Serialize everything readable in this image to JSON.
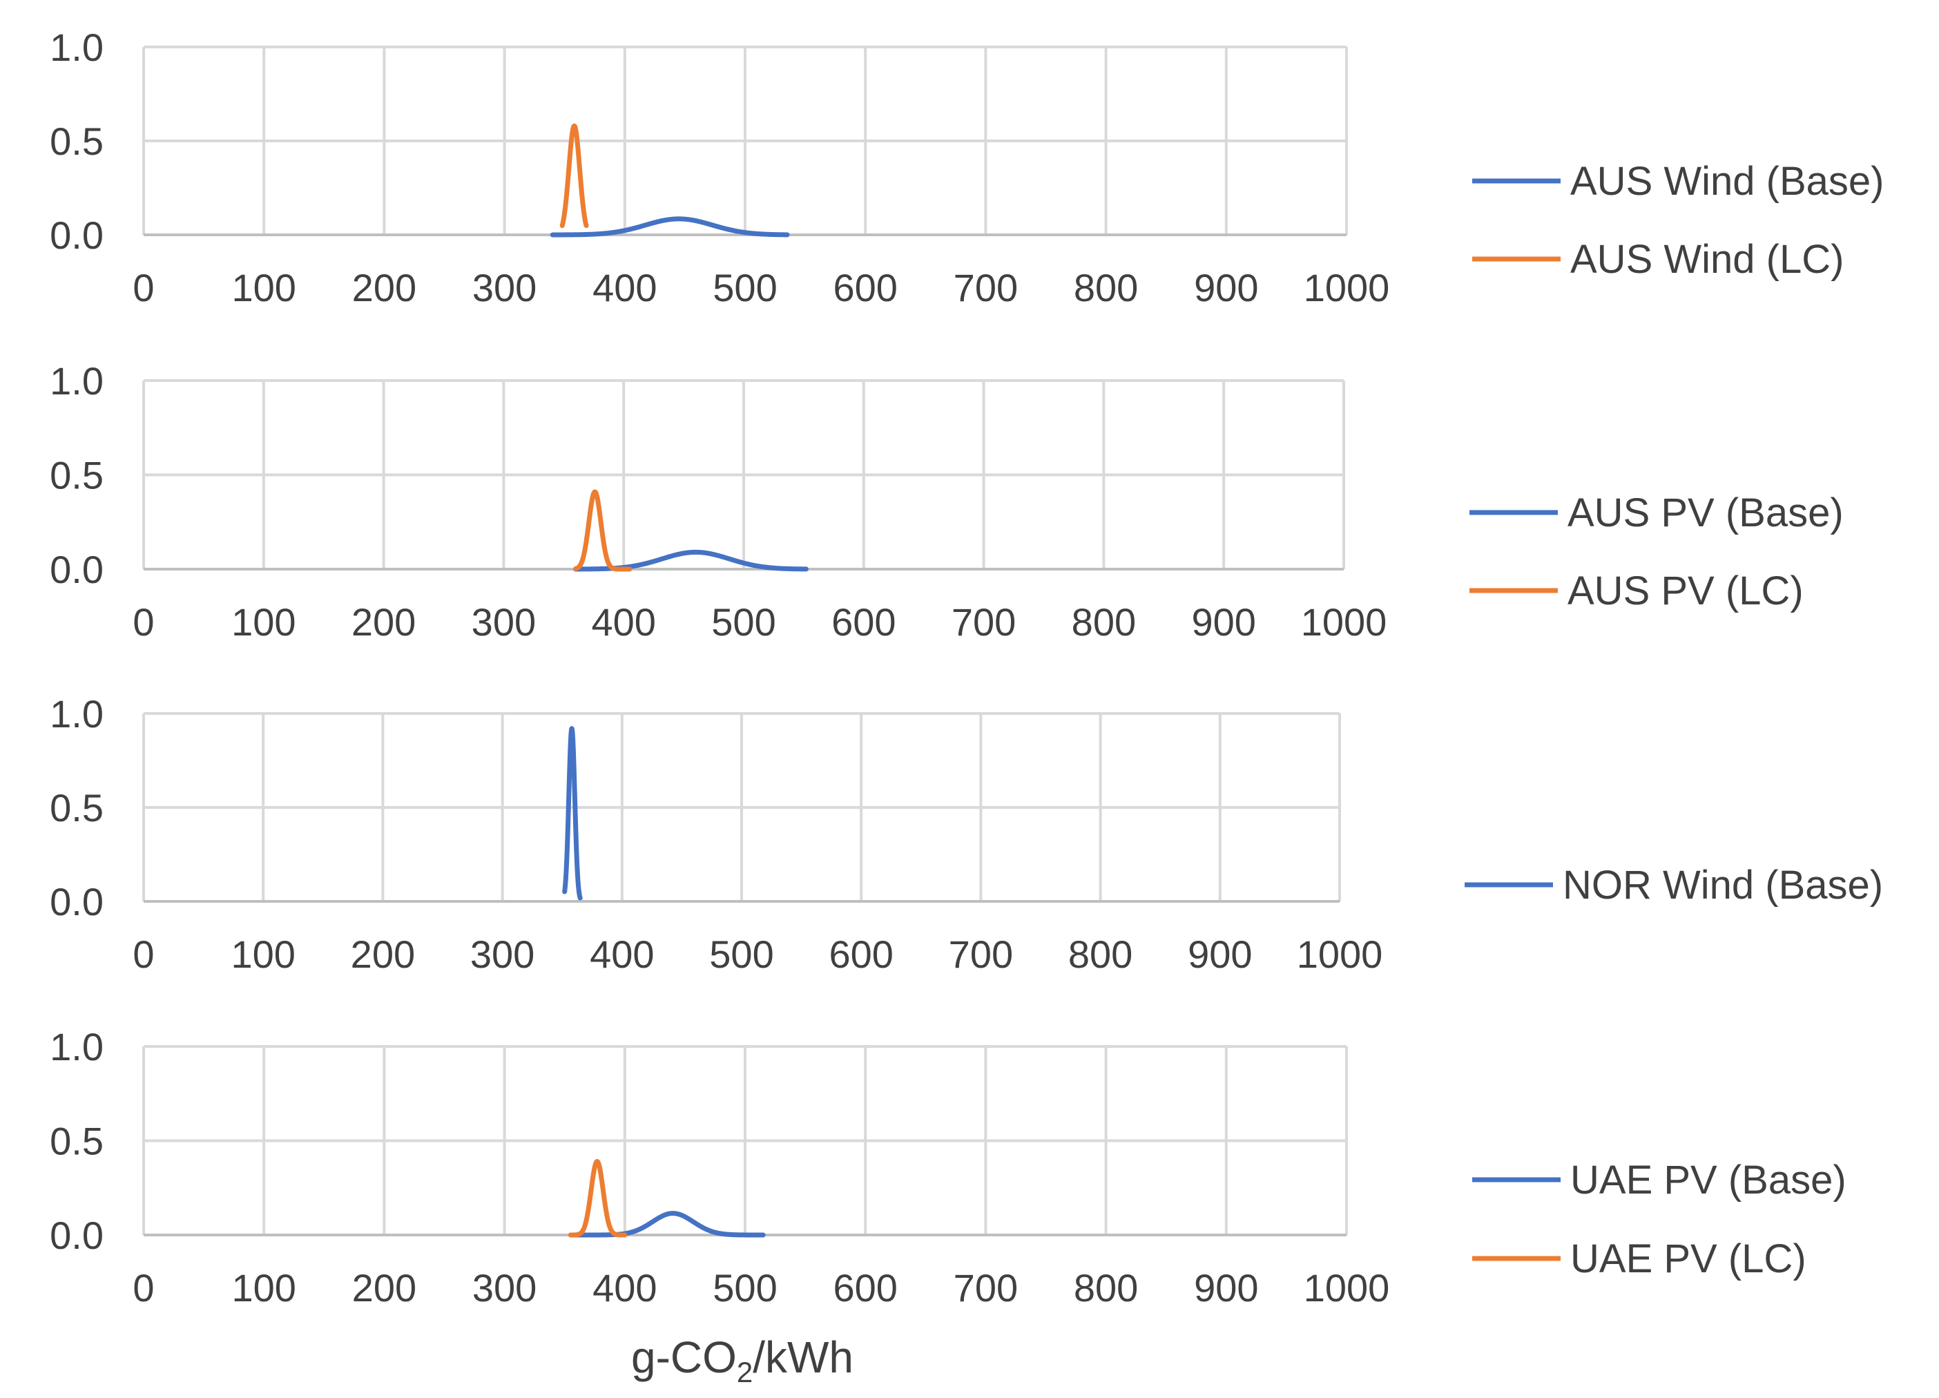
{
  "chart_data": {
    "type": "line",
    "xlabel_main": "g-CO",
    "xlabel_sub": "2",
    "xlabel_tail": "/kWh",
    "colors": {
      "base": "#4472C4",
      "lc": "#ED7D31"
    },
    "panels": [
      {
        "xlim": [
          0,
          1000
        ],
        "ylim": [
          0,
          1.0
        ],
        "x_ticks": [
          "0",
          "100",
          "200",
          "300",
          "400",
          "500",
          "600",
          "700",
          "800",
          "900",
          "1000"
        ],
        "y_ticks": [
          "1.0",
          "0.5",
          "0.0"
        ],
        "grid": true,
        "legend": "right",
        "series": [
          {
            "name": "AUS Wind (Base)",
            "color": "#4472C4",
            "kind": "gauss",
            "mean": 445,
            "sd": 28,
            "peak": 0.085,
            "range": [
              340,
              535
            ]
          },
          {
            "name": "AUS Wind (LC)",
            "color": "#ED7D31",
            "kind": "gauss",
            "mean": 358,
            "sd": 4.5,
            "peak": 0.58,
            "range": [
              348,
              368
            ]
          }
        ]
      },
      {
        "xlim": [
          0,
          1000
        ],
        "ylim": [
          0,
          1.0
        ],
        "x_ticks": [
          "0",
          "100",
          "200",
          "300",
          "400",
          "500",
          "600",
          "700",
          "800",
          "900",
          "1000"
        ],
        "y_ticks": [
          "1.0",
          "0.5",
          "0.0"
        ],
        "grid": true,
        "legend": "right",
        "series": [
          {
            "name": "AUS PV (Base)",
            "color": "#4472C4",
            "kind": "gauss",
            "mean": 460,
            "sd": 28,
            "peak": 0.09,
            "range": [
              360,
              552
            ]
          },
          {
            "name": "AUS PV (LC)",
            "color": "#ED7D31",
            "kind": "gauss",
            "mean": 376,
            "sd": 5,
            "peak": 0.41,
            "range": [
              360,
              405
            ]
          }
        ]
      },
      {
        "xlim": [
          0,
          1000
        ],
        "ylim": [
          0,
          1.0
        ],
        "x_ticks": [
          "0",
          "100",
          "200",
          "300",
          "400",
          "500",
          "600",
          "700",
          "800",
          "900",
          "1000"
        ],
        "y_ticks": [
          "1.0",
          "0.5",
          "0.0"
        ],
        "grid": true,
        "legend": "right",
        "series": [
          {
            "name": "NOR Wind (Base)",
            "color": "#4472C4",
            "kind": "gauss",
            "mean": 358,
            "sd": 2.5,
            "peak": 0.92,
            "range": [
              352,
              365
            ]
          }
        ]
      },
      {
        "xlim": [
          0,
          1000
        ],
        "ylim": [
          0,
          1.0
        ],
        "x_ticks": [
          "0",
          "100",
          "200",
          "300",
          "400",
          "500",
          "600",
          "700",
          "800",
          "900",
          "1000"
        ],
        "y_ticks": [
          "1.0",
          "0.5",
          "0.0"
        ],
        "grid": true,
        "legend": "right",
        "series": [
          {
            "name": "UAE PV (Base)",
            "color": "#4472C4",
            "kind": "gauss",
            "mean": 440,
            "sd": 17,
            "peak": 0.115,
            "range": [
              355,
              515
            ]
          },
          {
            "name": "UAE PV (LC)",
            "color": "#ED7D31",
            "kind": "gauss",
            "mean": 377,
            "sd": 5,
            "peak": 0.39,
            "range": [
              355,
              400
            ]
          }
        ]
      }
    ]
  }
}
